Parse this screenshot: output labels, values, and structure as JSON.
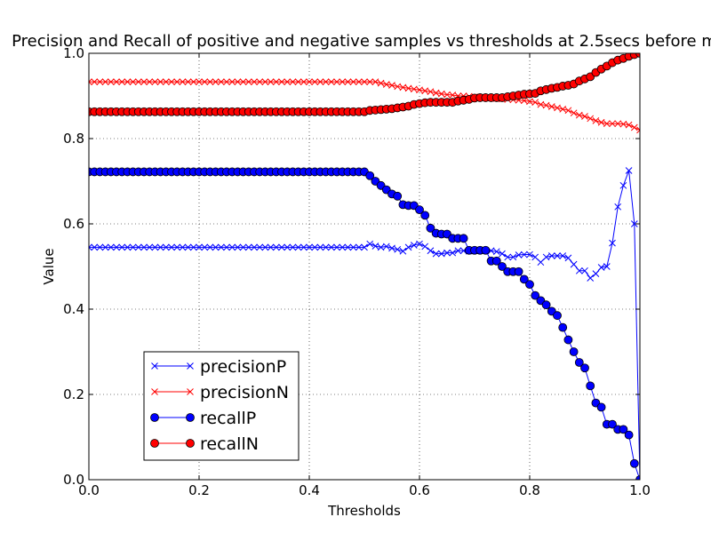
{
  "chart_data": {
    "type": "line",
    "title": "Precision and Recall of positive and negative samples vs thresholds at 2.5secs before m",
    "xlabel": "Thresholds",
    "ylabel": "Value",
    "xlim": [
      0.0,
      1.0
    ],
    "ylim": [
      0.0,
      1.0
    ],
    "x_ticks": [
      "0.0",
      "0.2",
      "0.4",
      "0.6",
      "0.8",
      "1.0"
    ],
    "y_ticks": [
      "0.0",
      "0.2",
      "0.4",
      "0.6",
      "0.8",
      "1.0"
    ],
    "grid": true,
    "legend_position": "lower-left",
    "series": [
      {
        "name": "precisionP",
        "color": "#0000ff",
        "marker": "x",
        "points": [
          [
            0.0,
            0.545
          ],
          [
            0.5,
            0.545
          ],
          [
            0.51,
            0.553
          ],
          [
            0.52,
            0.548
          ],
          [
            0.53,
            0.545
          ],
          [
            0.54,
            0.547
          ],
          [
            0.55,
            0.543
          ],
          [
            0.56,
            0.54
          ],
          [
            0.57,
            0.536
          ],
          [
            0.58,
            0.545
          ],
          [
            0.59,
            0.55
          ],
          [
            0.6,
            0.553
          ],
          [
            0.61,
            0.547
          ],
          [
            0.62,
            0.537
          ],
          [
            0.63,
            0.53
          ],
          [
            0.64,
            0.53
          ],
          [
            0.65,
            0.532
          ],
          [
            0.66,
            0.532
          ],
          [
            0.67,
            0.537
          ],
          [
            0.68,
            0.537
          ],
          [
            0.69,
            0.536
          ],
          [
            0.7,
            0.537
          ],
          [
            0.71,
            0.537
          ],
          [
            0.72,
            0.537
          ],
          [
            0.73,
            0.537
          ],
          [
            0.74,
            0.535
          ],
          [
            0.75,
            0.53
          ],
          [
            0.76,
            0.522
          ],
          [
            0.77,
            0.522
          ],
          [
            0.78,
            0.527
          ],
          [
            0.79,
            0.528
          ],
          [
            0.8,
            0.528
          ],
          [
            0.81,
            0.522
          ],
          [
            0.82,
            0.51
          ],
          [
            0.83,
            0.522
          ],
          [
            0.84,
            0.525
          ],
          [
            0.85,
            0.525
          ],
          [
            0.86,
            0.525
          ],
          [
            0.87,
            0.52
          ],
          [
            0.88,
            0.505
          ],
          [
            0.89,
            0.49
          ],
          [
            0.9,
            0.49
          ],
          [
            0.91,
            0.473
          ],
          [
            0.92,
            0.483
          ],
          [
            0.93,
            0.498
          ],
          [
            0.94,
            0.5
          ],
          [
            0.95,
            0.555
          ],
          [
            0.96,
            0.64
          ],
          [
            0.97,
            0.69
          ],
          [
            0.98,
            0.725
          ],
          [
            0.99,
            0.6
          ],
          [
            1.0,
            0.0
          ]
        ]
      },
      {
        "name": "precisionN",
        "color": "#ff0000",
        "marker": "x",
        "points": [
          [
            0.0,
            0.933
          ],
          [
            0.52,
            0.933
          ],
          [
            0.53,
            0.93
          ],
          [
            0.54,
            0.927
          ],
          [
            0.55,
            0.925
          ],
          [
            0.56,
            0.922
          ],
          [
            0.57,
            0.92
          ],
          [
            0.58,
            0.918
          ],
          [
            0.59,
            0.916
          ],
          [
            0.6,
            0.914
          ],
          [
            0.61,
            0.912
          ],
          [
            0.62,
            0.91
          ],
          [
            0.63,
            0.907
          ],
          [
            0.64,
            0.905
          ],
          [
            0.65,
            0.903
          ],
          [
            0.66,
            0.902
          ],
          [
            0.67,
            0.9
          ],
          [
            0.68,
            0.9
          ],
          [
            0.69,
            0.899
          ],
          [
            0.7,
            0.898
          ],
          [
            0.71,
            0.897
          ],
          [
            0.72,
            0.896
          ],
          [
            0.73,
            0.895
          ],
          [
            0.74,
            0.894
          ],
          [
            0.75,
            0.893
          ],
          [
            0.76,
            0.892
          ],
          [
            0.77,
            0.891
          ],
          [
            0.78,
            0.89
          ],
          [
            0.79,
            0.889
          ],
          [
            0.8,
            0.887
          ],
          [
            0.81,
            0.885
          ],
          [
            0.82,
            0.88
          ],
          [
            0.83,
            0.878
          ],
          [
            0.84,
            0.875
          ],
          [
            0.85,
            0.872
          ],
          [
            0.86,
            0.869
          ],
          [
            0.87,
            0.866
          ],
          [
            0.88,
            0.86
          ],
          [
            0.89,
            0.855
          ],
          [
            0.9,
            0.852
          ],
          [
            0.91,
            0.847
          ],
          [
            0.92,
            0.842
          ],
          [
            0.93,
            0.838
          ],
          [
            0.94,
            0.835
          ],
          [
            0.95,
            0.835
          ],
          [
            0.96,
            0.835
          ],
          [
            0.97,
            0.834
          ],
          [
            0.98,
            0.832
          ],
          [
            0.99,
            0.826
          ],
          [
            1.0,
            0.82
          ]
        ]
      },
      {
        "name": "recallP",
        "color": "#0000ff",
        "marker": "o",
        "points": [
          [
            0.0,
            0.722
          ],
          [
            0.5,
            0.722
          ],
          [
            0.51,
            0.713
          ],
          [
            0.52,
            0.7
          ],
          [
            0.53,
            0.69
          ],
          [
            0.54,
            0.68
          ],
          [
            0.55,
            0.67
          ],
          [
            0.56,
            0.665
          ],
          [
            0.57,
            0.645
          ],
          [
            0.58,
            0.643
          ],
          [
            0.59,
            0.643
          ],
          [
            0.6,
            0.633
          ],
          [
            0.61,
            0.62
          ],
          [
            0.62,
            0.59
          ],
          [
            0.63,
            0.578
          ],
          [
            0.64,
            0.576
          ],
          [
            0.65,
            0.576
          ],
          [
            0.66,
            0.566
          ],
          [
            0.67,
            0.566
          ],
          [
            0.68,
            0.566
          ],
          [
            0.69,
            0.538
          ],
          [
            0.7,
            0.538
          ],
          [
            0.71,
            0.538
          ],
          [
            0.72,
            0.538
          ],
          [
            0.73,
            0.513
          ],
          [
            0.74,
            0.513
          ],
          [
            0.75,
            0.5
          ],
          [
            0.76,
            0.488
          ],
          [
            0.77,
            0.488
          ],
          [
            0.78,
            0.488
          ],
          [
            0.79,
            0.47
          ],
          [
            0.8,
            0.458
          ],
          [
            0.81,
            0.432
          ],
          [
            0.82,
            0.42
          ],
          [
            0.83,
            0.41
          ],
          [
            0.84,
            0.395
          ],
          [
            0.85,
            0.385
          ],
          [
            0.86,
            0.357
          ],
          [
            0.87,
            0.328
          ],
          [
            0.88,
            0.3
          ],
          [
            0.89,
            0.275
          ],
          [
            0.9,
            0.262
          ],
          [
            0.91,
            0.22
          ],
          [
            0.92,
            0.18
          ],
          [
            0.93,
            0.17
          ],
          [
            0.94,
            0.13
          ],
          [
            0.95,
            0.13
          ],
          [
            0.96,
            0.118
          ],
          [
            0.97,
            0.118
          ],
          [
            0.98,
            0.105
          ],
          [
            0.99,
            0.038
          ],
          [
            1.0,
            0.0
          ]
        ]
      },
      {
        "name": "recallN",
        "color": "#ff0000",
        "marker": "o",
        "points": [
          [
            0.0,
            0.863
          ],
          [
            0.5,
            0.863
          ],
          [
            0.51,
            0.866
          ],
          [
            0.52,
            0.867
          ],
          [
            0.53,
            0.868
          ],
          [
            0.54,
            0.869
          ],
          [
            0.55,
            0.87
          ],
          [
            0.56,
            0.872
          ],
          [
            0.57,
            0.874
          ],
          [
            0.58,
            0.876
          ],
          [
            0.59,
            0.88
          ],
          [
            0.6,
            0.882
          ],
          [
            0.61,
            0.884
          ],
          [
            0.62,
            0.885
          ],
          [
            0.63,
            0.885
          ],
          [
            0.64,
            0.885
          ],
          [
            0.65,
            0.885
          ],
          [
            0.66,
            0.885
          ],
          [
            0.67,
            0.888
          ],
          [
            0.68,
            0.89
          ],
          [
            0.69,
            0.892
          ],
          [
            0.7,
            0.895
          ],
          [
            0.71,
            0.896
          ],
          [
            0.72,
            0.896
          ],
          [
            0.73,
            0.896
          ],
          [
            0.74,
            0.896
          ],
          [
            0.75,
            0.896
          ],
          [
            0.76,
            0.898
          ],
          [
            0.77,
            0.9
          ],
          [
            0.78,
            0.902
          ],
          [
            0.79,
            0.904
          ],
          [
            0.8,
            0.905
          ],
          [
            0.81,
            0.906
          ],
          [
            0.82,
            0.912
          ],
          [
            0.83,
            0.915
          ],
          [
            0.84,
            0.918
          ],
          [
            0.85,
            0.92
          ],
          [
            0.86,
            0.923
          ],
          [
            0.87,
            0.925
          ],
          [
            0.88,
            0.928
          ],
          [
            0.89,
            0.935
          ],
          [
            0.9,
            0.94
          ],
          [
            0.91,
            0.945
          ],
          [
            0.92,
            0.955
          ],
          [
            0.93,
            0.963
          ],
          [
            0.94,
            0.97
          ],
          [
            0.95,
            0.978
          ],
          [
            0.96,
            0.984
          ],
          [
            0.97,
            0.988
          ],
          [
            0.98,
            0.993
          ],
          [
            0.99,
            0.997
          ],
          [
            1.0,
            1.0
          ]
        ]
      }
    ]
  }
}
